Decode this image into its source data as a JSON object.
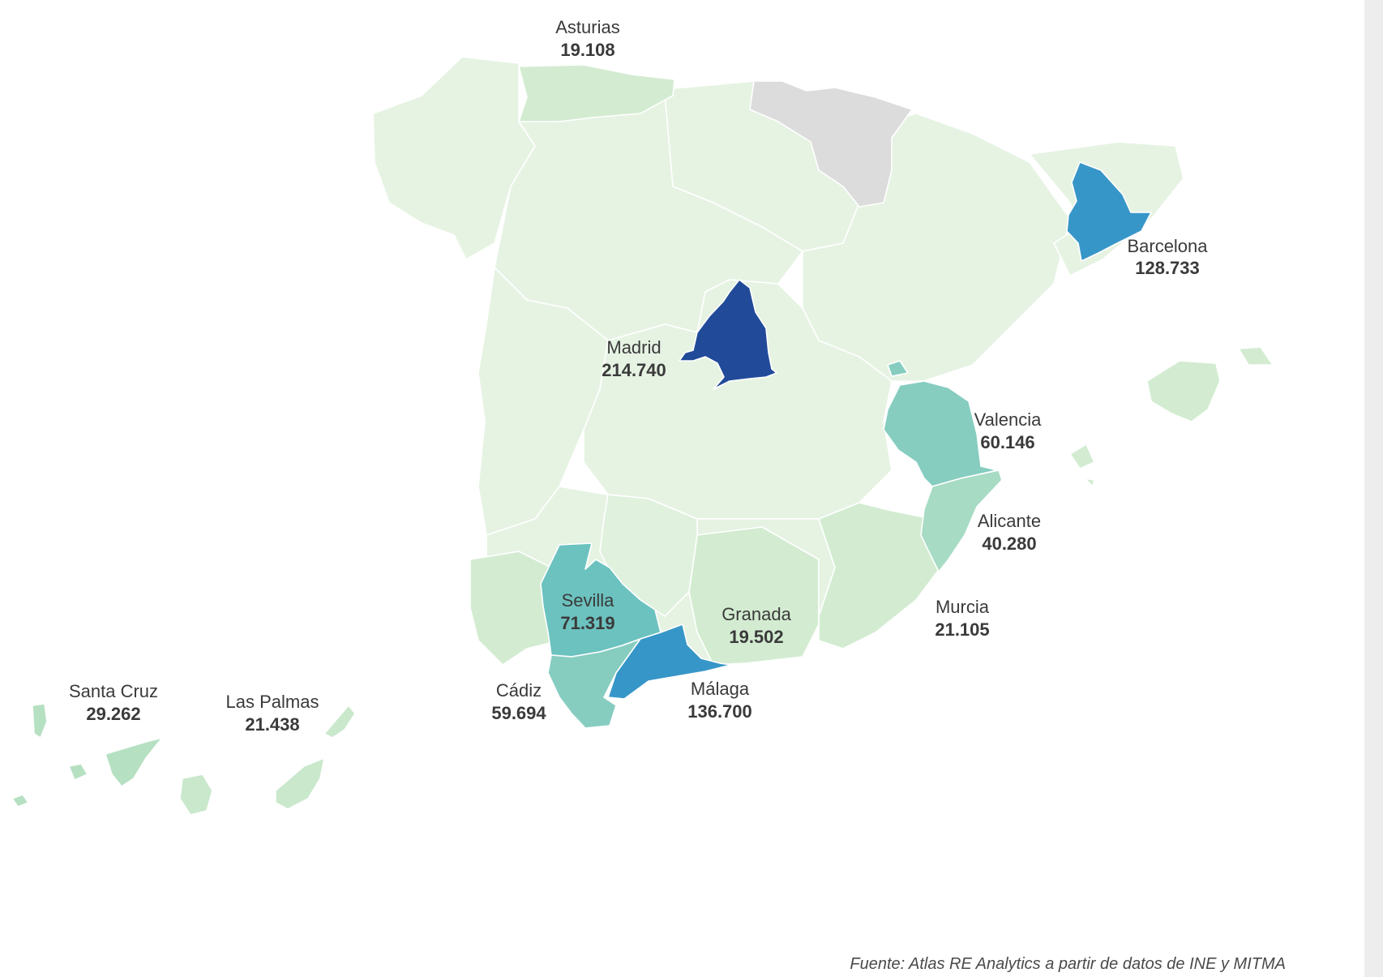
{
  "colors": {
    "scale_lowest": "#e6f3e3",
    "scale_low": "#d3ecd1",
    "scale_mid_low": "#b6e0c2",
    "scale_mid": "#86cdc0",
    "scale_mid_high": "#6cc2bf",
    "scale_high": "#3796c8",
    "scale_highest": "#214b99",
    "no_data": "#dcdcdc"
  },
  "map_data": {
    "type": "choropleth",
    "regions": [
      {
        "id": "asturias",
        "name": "Asturias",
        "value_label": "19.108",
        "value": 19108,
        "color": "#d3ecd1"
      },
      {
        "id": "barcelona",
        "name": "Barcelona",
        "value_label": "128.733",
        "value": 128733,
        "color": "#3796c8"
      },
      {
        "id": "madrid",
        "name": "Madrid",
        "value_label": "214.740",
        "value": 214740,
        "color": "#214b99"
      },
      {
        "id": "valencia",
        "name": "Valencia",
        "value_label": "60.146",
        "value": 60146,
        "color": "#86cdc0"
      },
      {
        "id": "alicante",
        "name": "Alicante",
        "value_label": "40.280",
        "value": 40280,
        "color": "#a7dbc4"
      },
      {
        "id": "murcia",
        "name": "Murcia",
        "value_label": "21.105",
        "value": 21105,
        "color": "#d3ecd1"
      },
      {
        "id": "sevilla",
        "name": "Sevilla",
        "value_label": "71.319",
        "value": 71319,
        "color": "#6cc2bf"
      },
      {
        "id": "granada",
        "name": "Granada",
        "value_label": "19.502",
        "value": 19502,
        "color": "#d3ecd1"
      },
      {
        "id": "malaga",
        "name": "Málaga",
        "value_label": "136.700",
        "value": 136700,
        "color": "#3796c8"
      },
      {
        "id": "cadiz",
        "name": "Cádiz",
        "value_label": "59.694",
        "value": 59694,
        "color": "#86cdc0"
      },
      {
        "id": "santa-cruz",
        "name": "Santa Cruz",
        "value_label": "29.262",
        "value": 29262,
        "color": "#b6e0c2"
      },
      {
        "id": "las-palmas",
        "name": "Las Palmas",
        "value_label": "21.438",
        "value": 21438,
        "color": "#c9e8cc"
      }
    ]
  },
  "source": "Fuente: Atlas RE Analytics a partir de datos de INE y MITMA"
}
